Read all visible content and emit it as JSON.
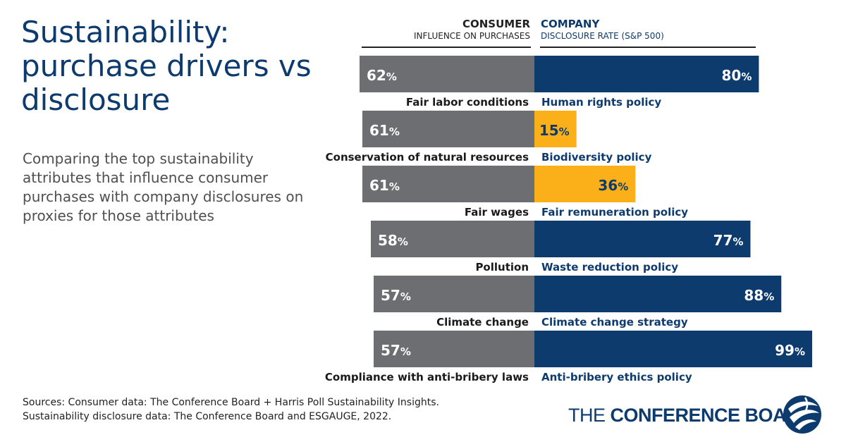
{
  "title": "Sustainability: purchase drivers vs disclosure",
  "subtitle": "Comparing the top sustainability attributes that influence consumer purchases with company disclosures on proxies for those attributes",
  "headers": {
    "consumer_title": "CONSUMER",
    "consumer_sub": "INFLUENCE ON PURCHASES",
    "company_title": "COMPANY",
    "company_sub": "DISCLOSURE RATE (S&P 500)"
  },
  "colors": {
    "consumer_bar": "#6d6e71",
    "company_bar": "#0d3b6e",
    "company_bar_low": "#fbb01a",
    "title": "#0d3b6e"
  },
  "chart_data": {
    "type": "bar",
    "orientation": "horizontal-diverging",
    "unit": "%",
    "categories": [
      "Fair labor conditions",
      "Conservation of natural resources",
      "Fair wages",
      "Pollution",
      "Climate change",
      "Compliance with anti-bribery laws"
    ],
    "company_categories": [
      "Human rights policy",
      "Biodiversity policy",
      "Fair remuneration policy",
      "Waste reduction policy",
      "Climate change strategy",
      "Anti-bribery ethics policy"
    ],
    "series": [
      {
        "name": "CONSUMER",
        "values": [
          62,
          61,
          61,
          58,
          57,
          57
        ]
      },
      {
        "name": "COMPANY",
        "values": [
          80,
          15,
          36,
          77,
          88,
          99
        ]
      }
    ],
    "highlighted_company_values": [
      15,
      36
    ]
  },
  "sources": {
    "line1": "Sources: Consumer data: The Conference Board + Harris Poll Sustainability Insights.",
    "line2": "Sustainability disclosure data: The Conference Board and ESGAUGE, 2022."
  },
  "logo": {
    "word_the": "THE",
    "word_rest": "CONFERENCE BOARD",
    "mark_icon": "globe-swoosh-icon"
  }
}
